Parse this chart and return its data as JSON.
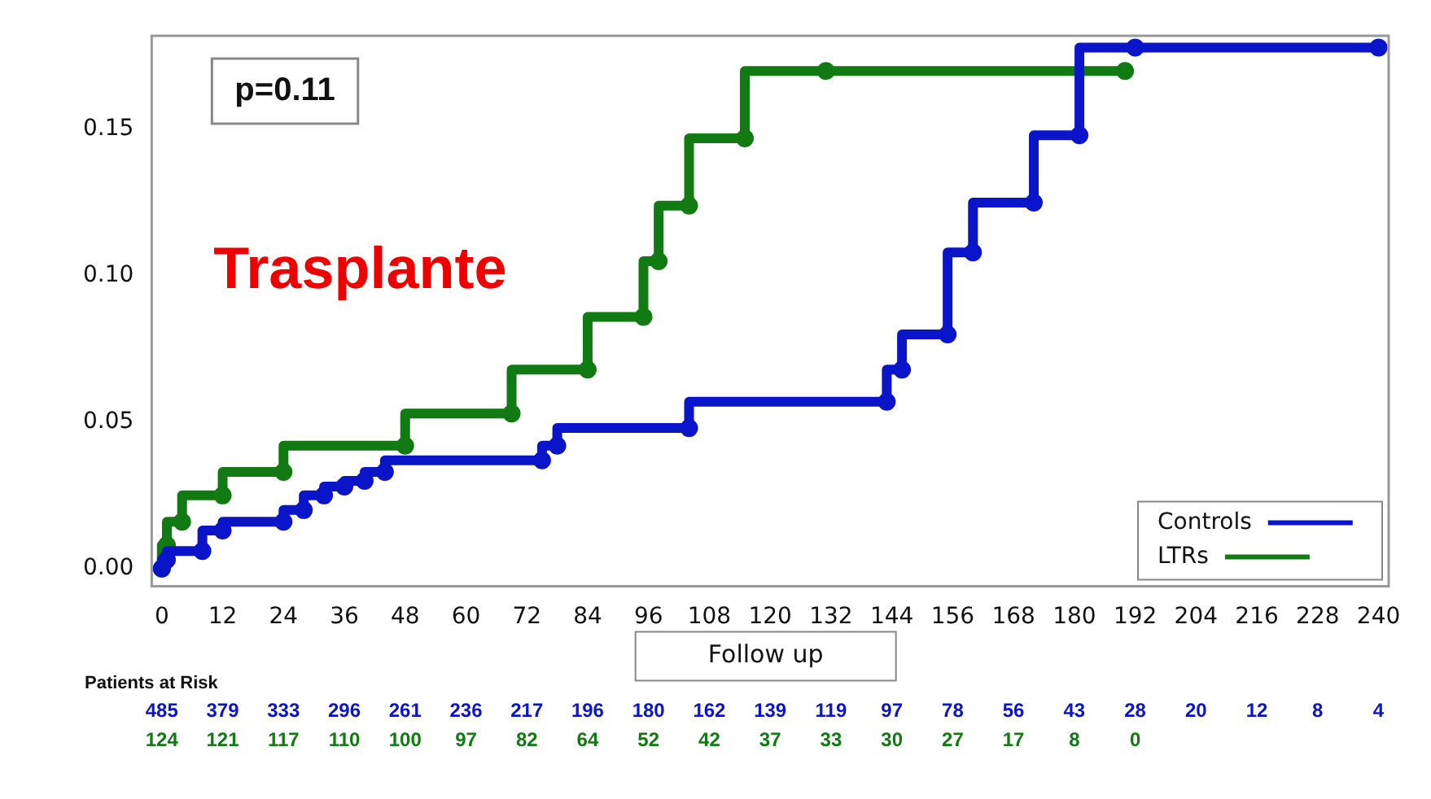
{
  "chart_data": {
    "type": "step",
    "title": "Trasplante",
    "xlabel": "Follow up",
    "annotations": [
      "p=0.11",
      "Patients at Risk",
      "485 379 333 296 261 236 217 196 180 162 139 119 97 78 56 43 28 20 12 8 4",
      "124 121 117 110 100 97 82 64 52 42 37 33 30 27 17 8 0"
    ],
    "series": [
      {
        "name": "Controls",
        "color": "#0a14c8",
        "x": [
          0,
          1,
          8,
          12,
          24,
          28,
          32,
          36,
          40,
          44,
          75,
          78,
          104,
          143,
          146,
          155,
          160,
          172,
          181,
          192,
          240
        ],
        "values": [
          0,
          0.003,
          0.006,
          0.013,
          0.016,
          0.02,
          0.025,
          0.028,
          0.03,
          0.033,
          0.037,
          0.042,
          0.048,
          0.057,
          0.068,
          0.08,
          0.108,
          0.125,
          0.148,
          0.178,
          0.178
        ]
      },
      {
        "name": "LTRs",
        "color": "#127a12",
        "x": [
          0,
          1,
          4,
          12,
          24,
          48,
          69,
          84,
          95,
          98,
          104,
          115,
          131,
          190
        ],
        "values": [
          0,
          0.008,
          0.016,
          0.025,
          0.033,
          0.042,
          0.053,
          0.068,
          0.086,
          0.105,
          0.124,
          0.147,
          0.17,
          0.17
        ]
      }
    ],
    "xlim": [
      -2,
      242
    ],
    "xticks": [
      0,
      12,
      24,
      36,
      48,
      60,
      72,
      84,
      96,
      108,
      120,
      132,
      144,
      156,
      168,
      180,
      192,
      204,
      216,
      228,
      240
    ],
    "ylim": [
      -0.006,
      0.182
    ],
    "yticks": [
      {
        "value": 0,
        "label": "0.00"
      },
      {
        "value": 0.05,
        "label": "0.05"
      },
      {
        "value": 0.1,
        "label": "0.10"
      },
      {
        "value": 0.15,
        "label": "0.15"
      }
    ],
    "grid": false,
    "legend": "bottom right",
    "marker": "circle",
    "line_style": "solid"
  }
}
